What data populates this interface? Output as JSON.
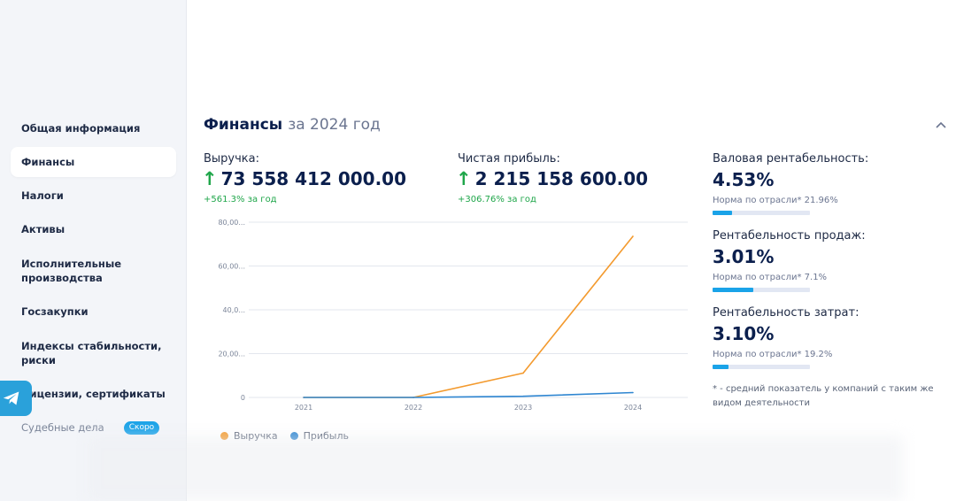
{
  "sidebar": {
    "items": [
      {
        "label": "Общая информация"
      },
      {
        "label": "Финансы",
        "active": true
      },
      {
        "label": "Налоги"
      },
      {
        "label": "Активы"
      },
      {
        "label": "Исполнительные производства"
      },
      {
        "label": "Госзакупки"
      },
      {
        "label": "Индексы стабильности, риски"
      },
      {
        "label": "Лицензии, сертификаты"
      },
      {
        "label": "Судебные дела",
        "badge": "Скоро"
      }
    ]
  },
  "section": {
    "title": "Финансы",
    "subtitle": "за 2024 год"
  },
  "metrics": {
    "revenue": {
      "label": "Выручка:",
      "value": "73 558 412 000.00",
      "change": "+561.3% за год"
    },
    "profit": {
      "label": "Чистая прибыль:",
      "value": "2 215 158 600.00",
      "change": "+306.76% за год"
    }
  },
  "ratios": [
    {
      "label": "Валовая рентабельность:",
      "value": "4.53%",
      "norm": "Норма по отрасли* 21.96%",
      "fill": 0.2
    },
    {
      "label": "Рентабельность продаж:",
      "value": "3.01%",
      "norm": "Норма по отрасли* 7.1%",
      "fill": 0.42
    },
    {
      "label": "Рентабельность затрат:",
      "value": "3.10%",
      "norm": "Норма по отрасли* 19.2%",
      "fill": 0.16
    }
  ],
  "footnote": "* - средний показатель у компаний с таким же видом деятельности",
  "chart_data": {
    "type": "line",
    "x": [
      "2021",
      "2022",
      "2023",
      "2024"
    ],
    "yticks": [
      "0",
      "20,00...",
      "40,0...",
      "60,00...",
      "80,00..."
    ],
    "ylim": [
      0,
      80
    ],
    "grid": true,
    "legend_position": "bottom-left",
    "series": [
      {
        "name": "Выручка",
        "color": "#f39a2e",
        "values": [
          0,
          0,
          11.1,
          73.56
        ]
      },
      {
        "name": "Прибыль",
        "color": "#2f86d1",
        "values": [
          0,
          0,
          0.54,
          2.22
        ]
      }
    ]
  },
  "colors": {
    "accent": "#1aa3e8",
    "positive": "#1fa64a",
    "telegram": "#2aa1da"
  },
  "icons": {
    "telegram": "telegram-icon",
    "collapse": "chevron-up-icon",
    "up_arrow": "arrow-up-icon"
  }
}
